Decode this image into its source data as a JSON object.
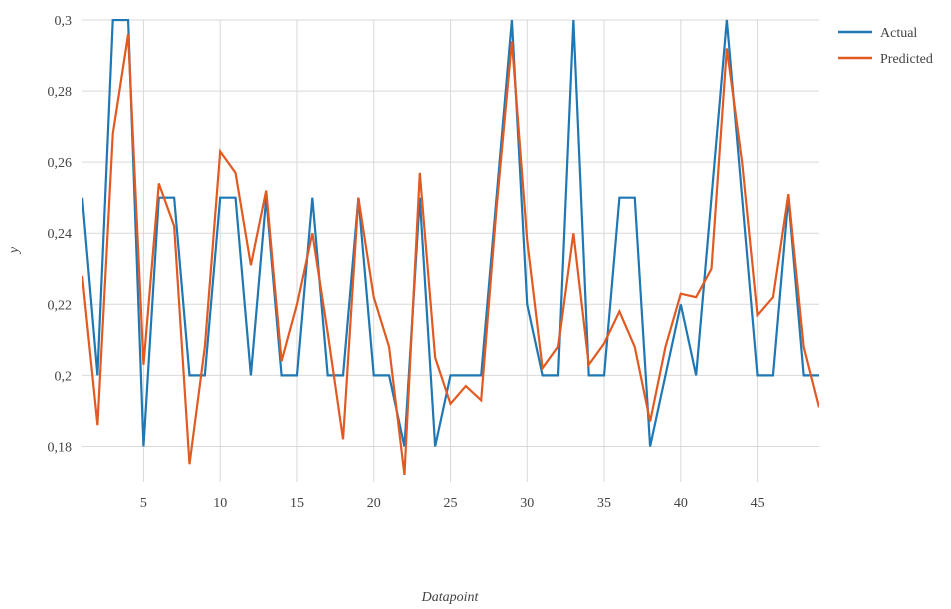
{
  "chart_data": {
    "type": "line",
    "title": "",
    "xlabel": "Datapoint",
    "ylabel": "y",
    "xlim": [
      1,
      49
    ],
    "ylim": [
      0.17,
      0.3
    ],
    "grid": true,
    "legend_position": "top-right",
    "xticks": [
      5,
      10,
      15,
      20,
      25,
      30,
      35,
      40,
      45
    ],
    "xtick_labels": [
      "5",
      "10",
      "15",
      "20",
      "25",
      "30",
      "35",
      "40",
      "45"
    ],
    "yticks": [
      0.18,
      0.2,
      0.22,
      0.24,
      0.26,
      0.28,
      0.3
    ],
    "ytick_labels": [
      "0,18",
      "0,2",
      "0,22",
      "0,24",
      "0,26",
      "0,28",
      "0,3"
    ],
    "x": [
      1,
      2,
      3,
      4,
      5,
      6,
      7,
      8,
      9,
      10,
      11,
      12,
      13,
      14,
      15,
      16,
      17,
      18,
      19,
      20,
      21,
      22,
      23,
      24,
      25,
      26,
      27,
      28,
      29,
      30,
      31,
      32,
      33,
      34,
      35,
      36,
      37,
      38,
      39,
      40,
      41,
      42,
      43,
      44,
      45,
      46,
      47,
      48,
      49
    ],
    "series": [
      {
        "name": "Actual",
        "color": "#1f77b4",
        "values": [
          0.25,
          0.2,
          0.3,
          0.3,
          0.18,
          0.25,
          0.25,
          0.2,
          0.2,
          0.25,
          0.25,
          0.2,
          0.25,
          0.2,
          0.2,
          0.25,
          0.2,
          0.2,
          0.25,
          0.2,
          0.2,
          0.18,
          0.25,
          0.18,
          0.2,
          0.2,
          0.2,
          0.25,
          0.3,
          0.22,
          0.2,
          0.2,
          0.3,
          0.2,
          0.2,
          0.25,
          0.25,
          0.18,
          0.2,
          0.22,
          0.2,
          0.25,
          0.3,
          0.25,
          0.2,
          0.2,
          0.25,
          0.2,
          0.2
        ]
      },
      {
        "name": "Predicted",
        "color": "#e15a22",
        "values": [
          0.228,
          0.186,
          0.268,
          0.296,
          0.203,
          0.254,
          0.242,
          0.175,
          0.208,
          0.263,
          0.257,
          0.231,
          0.252,
          0.204,
          0.22,
          0.24,
          0.212,
          0.182,
          0.25,
          0.222,
          0.208,
          0.172,
          0.257,
          0.205,
          0.192,
          0.197,
          0.193,
          0.247,
          0.294,
          0.238,
          0.202,
          0.208,
          0.24,
          0.203,
          0.209,
          0.218,
          0.208,
          0.187,
          0.208,
          0.223,
          0.222,
          0.23,
          0.292,
          0.26,
          0.217,
          0.222,
          0.251,
          0.208,
          0.191
        ]
      }
    ]
  }
}
